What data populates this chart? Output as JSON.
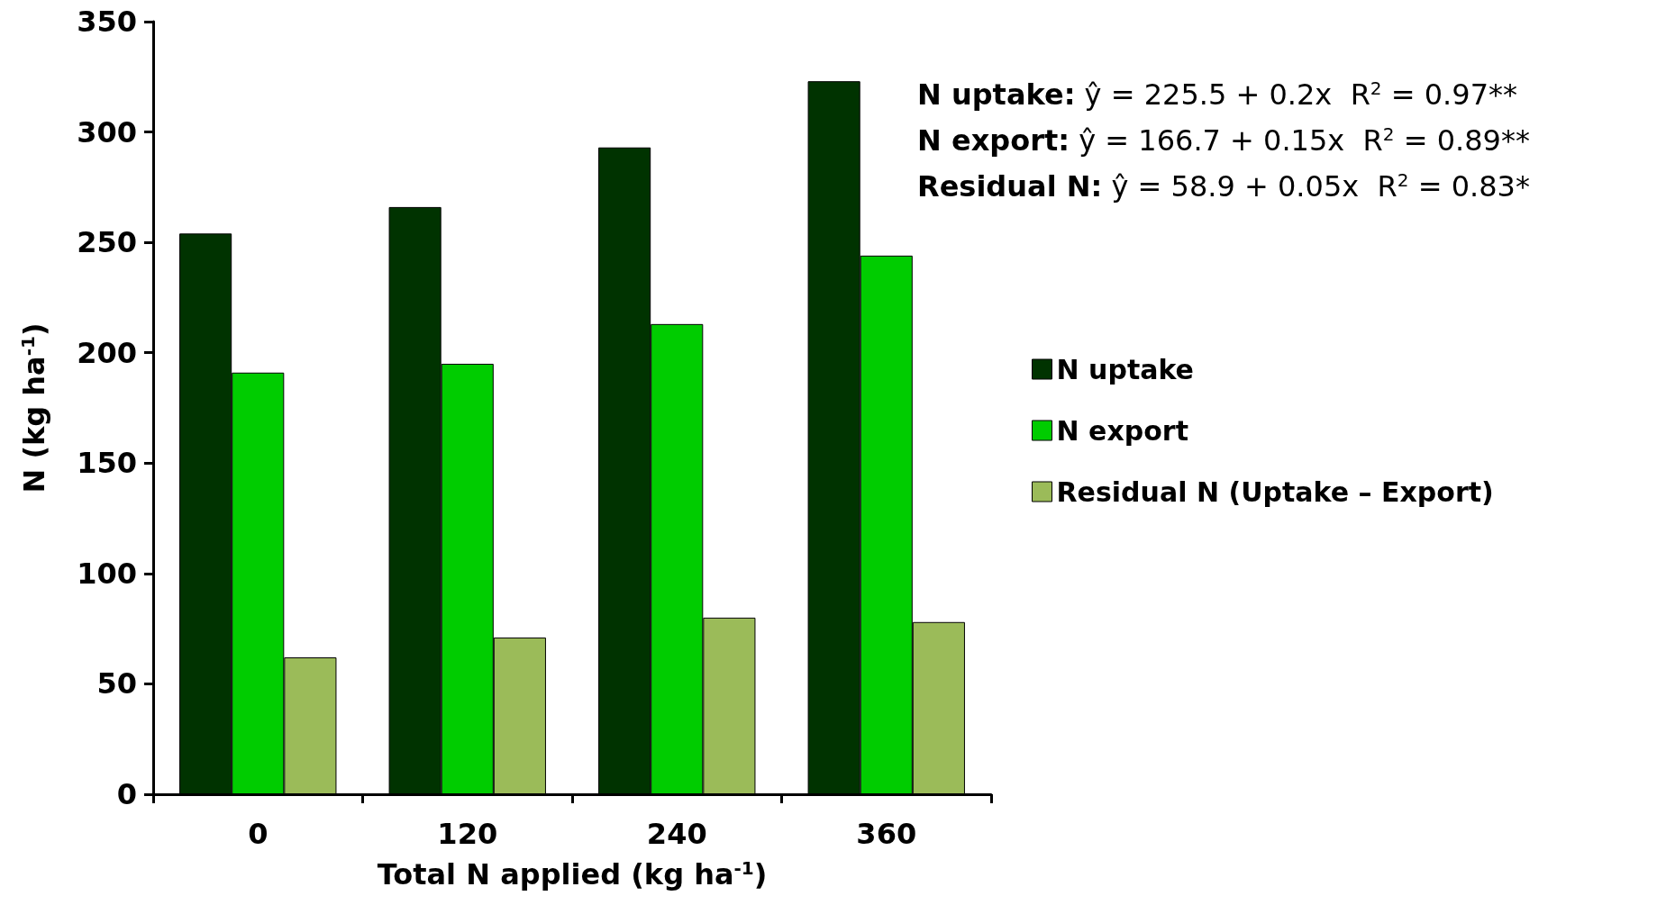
{
  "chart_data": {
    "type": "bar",
    "xlabel": "Total N applied (kg ha$^{-1}$)",
    "ylabel": "N (kg ha$^{-1}$)",
    "categories": [
      "0",
      "120",
      "240",
      "360"
    ],
    "series": [
      {
        "name": "N uptake",
        "color": "#003300",
        "values": [
          254,
          266,
          293,
          323
        ]
      },
      {
        "name": "N export",
        "color": "#00cc00",
        "values": [
          191,
          195,
          213,
          244
        ]
      },
      {
        "name": "Residual N (Uptake – Export)",
        "color": "#9bbb59",
        "values": [
          62,
          71,
          80,
          78
        ]
      }
    ],
    "ylim": [
      0,
      350
    ],
    "yticks": [
      0,
      50,
      100,
      150,
      200,
      250,
      300,
      350
    ],
    "grid": false,
    "legend": "right",
    "annotations": [
      "N uptake: ŷ = 225.5 + 0.2x  R$^{2}$ = 0.97**",
      "N export: ŷ = 166.7 + 0.15x  R$^{2}$ = 0.89**",
      "Residual N: ŷ = 58.9 + 0.05x  R$^{2}$ = 0.83*"
    ]
  }
}
